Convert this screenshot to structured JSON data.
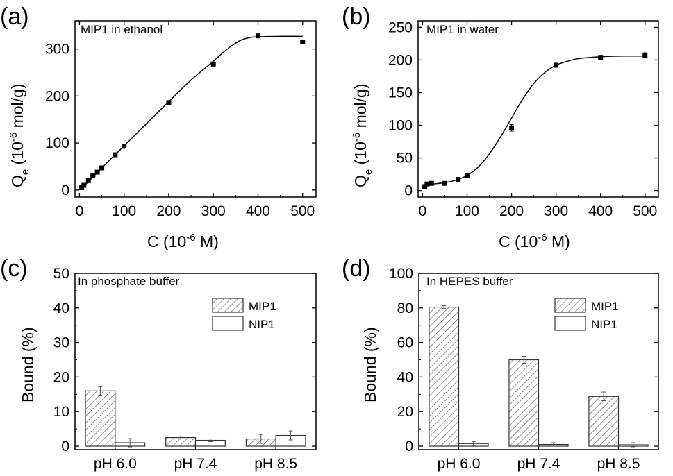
{
  "panels": [
    {
      "letter": "(a)",
      "chart_data": {
        "type": "scatter",
        "title": "MIP1 in ethanol",
        "xlabel": "C (10",
        "xlabel_sup": "-6",
        "xlabel_tail": " M)",
        "ylabel": "Q",
        "ylabel_sub": "e",
        "ylabel_mid": " (10",
        "ylabel_sup": "-6",
        "ylabel_tail": " mol/g)",
        "xlim": [
          -10,
          530
        ],
        "ylim": [
          -15,
          360
        ],
        "xticks": [
          0,
          100,
          200,
          300,
          400,
          500
        ],
        "yticks": [
          0,
          100,
          200,
          300
        ],
        "xtick_labels": [
          "0",
          "100",
          "200",
          "300",
          "400",
          "500"
        ],
        "ytick_labels": [
          "0",
          "100",
          "200",
          "300"
        ],
        "series": [
          {
            "x": [
              5,
              10,
              20,
              30,
              40,
              50,
              80,
              100,
              200,
              300,
              400,
              500
            ],
            "y": [
              5,
              10,
              20,
              30,
              38,
              47,
              75,
              93,
              186,
              268,
              328,
              315
            ],
            "yerr": [
              1,
              1,
              1,
              1,
              1,
              1,
              2,
              2,
              2,
              3,
              3,
              3
            ]
          }
        ],
        "fit_curve": {
          "x": [
            5,
            50,
            100,
            150,
            200,
            250,
            300,
            320,
            340,
            360,
            380,
            400,
            450,
            500
          ],
          "y": [
            3,
            47,
            94,
            141,
            188,
            234,
            274,
            291,
            306,
            318,
            324,
            326,
            327,
            327
          ]
        }
      }
    },
    {
      "letter": "(b)",
      "chart_data": {
        "type": "scatter",
        "title": "MIP1 in water",
        "xlabel": "C (10",
        "xlabel_sup": "-6",
        "xlabel_tail": " M)",
        "ylabel": "Q",
        "ylabel_sub": "e",
        "ylabel_mid": " (10",
        "ylabel_sup": "-6",
        "ylabel_tail": " mol/g)",
        "xlim": [
          -10,
          530
        ],
        "ylim": [
          -10,
          260
        ],
        "xticks": [
          0,
          100,
          200,
          300,
          400,
          500
        ],
        "yticks": [
          0,
          50,
          100,
          150,
          200,
          250
        ],
        "xtick_labels": [
          "0",
          "100",
          "200",
          "300",
          "400",
          "500"
        ],
        "ytick_labels": [
          "0",
          "50",
          "100",
          "150",
          "200",
          "250"
        ],
        "series": [
          {
            "x": [
              5,
              10,
              20,
              50,
              80,
              100,
              200,
              300,
              400,
              500
            ],
            "y": [
              6,
              10,
              11,
              11,
              17,
              23,
              96,
              192,
              204,
              207
            ],
            "yerr": [
              2,
              2,
              2,
              1,
              2,
              2,
              5,
              2,
              2,
              4
            ]
          }
        ],
        "fit_curve": {
          "x": [
            5,
            25,
            50,
            75,
            100,
            125,
            150,
            175,
            200,
            225,
            250,
            275,
            300,
            325,
            350,
            400,
            450,
            500
          ],
          "y": [
            8,
            10,
            12,
            16,
            23,
            36,
            56,
            82,
            111,
            140,
            164,
            181,
            192,
            198,
            202,
            205,
            206,
            206
          ]
        }
      }
    },
    {
      "letter": "(c)",
      "chart_data": {
        "type": "bar",
        "title": "In phosphate buffer",
        "xlabel": "",
        "ylabel": "Bound (%)",
        "ylim": [
          -1,
          50
        ],
        "yticks": [
          0,
          10,
          20,
          30,
          40,
          50
        ],
        "ytick_labels": [
          "0",
          "10",
          "20",
          "30",
          "40",
          "50"
        ],
        "categories": [
          "pH 6.0",
          "pH 7.4",
          "pH 8.5"
        ],
        "series": [
          {
            "name": "MIP1",
            "values": [
              16.0,
              2.5,
              2.1
            ],
            "err": [
              1.2,
              0.4,
              1.3
            ]
          },
          {
            "name": "NIP1",
            "values": [
              1.0,
              1.7,
              3.1
            ],
            "err": [
              1.2,
              0.4,
              1.3
            ]
          }
        ],
        "legend": "top-right"
      }
    },
    {
      "letter": "(d)",
      "chart_data": {
        "type": "bar",
        "title": "In HEPES buffer",
        "xlabel": "",
        "ylabel": "Bound (%)",
        "ylim": [
          -2,
          100
        ],
        "yticks": [
          0,
          20,
          40,
          60,
          80,
          100
        ],
        "ytick_labels": [
          "0",
          "20",
          "40",
          "60",
          "80",
          "100"
        ],
        "categories": [
          "pH 6.0",
          "pH 7.4",
          "pH 8.5"
        ],
        "series": [
          {
            "name": "MIP1",
            "values": [
              80.5,
              50.0,
              28.8
            ],
            "err": [
              0.8,
              2.0,
              2.5
            ]
          },
          {
            "name": "NIP1",
            "values": [
              1.5,
              1.0,
              0.8
            ],
            "err": [
              1.2,
              1.0,
              1.2
            ]
          }
        ],
        "legend": "top-right"
      }
    }
  ]
}
